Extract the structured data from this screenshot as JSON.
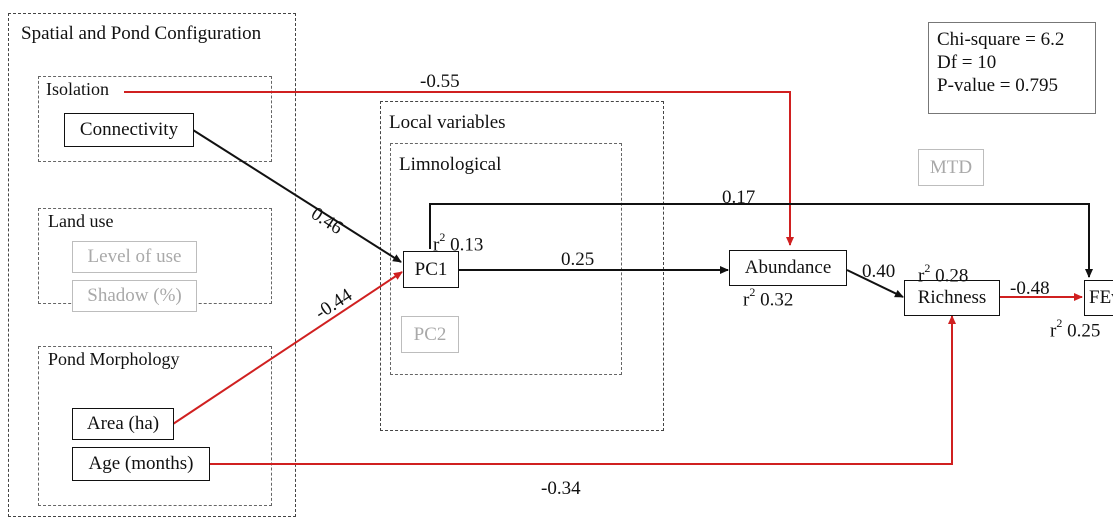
{
  "groups": {
    "spatial": "Spatial and Pond Configuration",
    "isolation": "Isolation",
    "land_use": "Land use",
    "pond_morphology": "Pond Morphology",
    "local_variables": "Local variables",
    "limnological": "Limnological"
  },
  "nodes": {
    "connectivity": "Connectivity",
    "level_of_use": "Level of use",
    "shadow": "Shadow (%)",
    "area": "Area (ha)",
    "age": "Age (months)",
    "pc1": "PC1",
    "pc2": "PC2",
    "mtd": "MTD",
    "abundance": "Abundance",
    "richness": "Richness",
    "feve": "FEve"
  },
  "r2_prefix": "r",
  "r2_exp": "2",
  "r2_values": {
    "pc1": "0.13",
    "abundance": "0.32",
    "richness": "0.28",
    "feve": "0.25"
  },
  "path_coefficients": {
    "connectivity_abundance": "-0.55",
    "connectivity_pc1": "0.46",
    "area_pc1": "-0.44",
    "pc1_feve": "0.17",
    "pc1_abundance": "0.25",
    "abundance_richness": "0.40",
    "richness_feve": "-0.48",
    "age_richness": "-0.34"
  },
  "stats": {
    "chi_square": "Chi-square = 6.2",
    "df": "Df = 10",
    "p_value": "P-value = 0.795"
  },
  "colors": {
    "positive_path": "#111111",
    "negative_path": "#d02020",
    "inactive_node": "#a9a9a9"
  }
}
